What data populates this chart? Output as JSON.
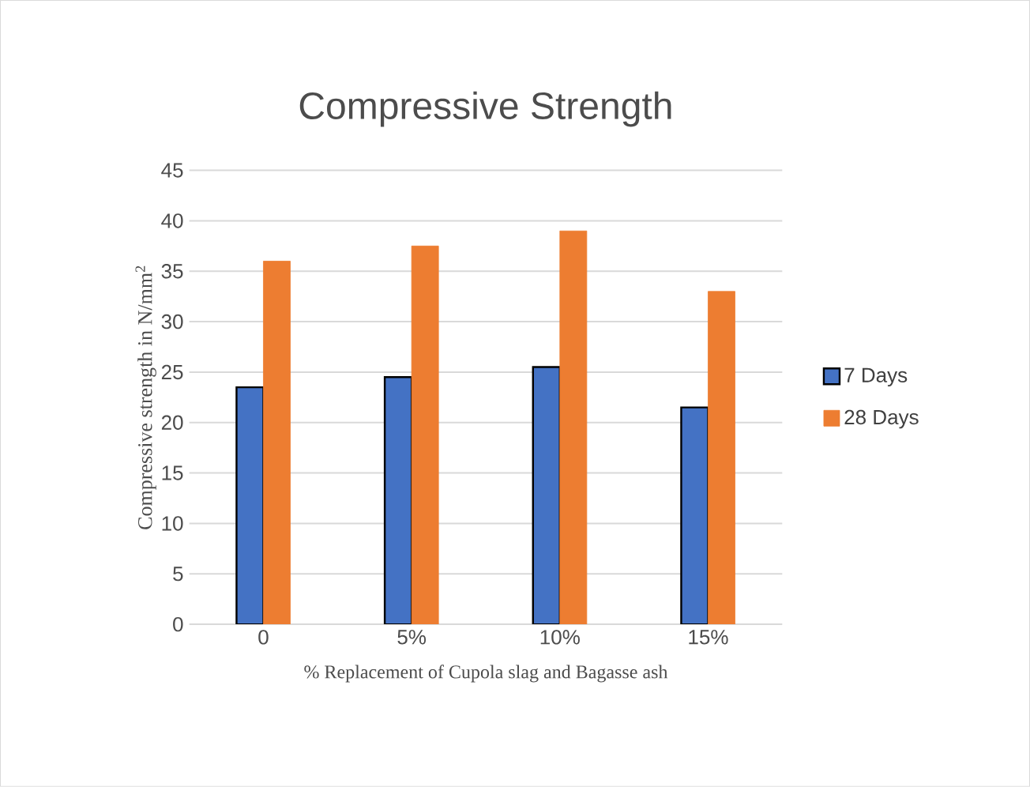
{
  "chart_data": {
    "type": "bar",
    "title": "Compressive Strength",
    "xlabel": "% Replacement of Cupola slag and Bagasse ash",
    "ylabel": "Compressive  strength in N/mm$^{2}$",
    "categories": [
      "0",
      "5%",
      "10%",
      "15%"
    ],
    "series": [
      {
        "name": "7 Days",
        "color": "#4472c4",
        "values": [
          23.5,
          24.5,
          25.5,
          21.5
        ]
      },
      {
        "name": "28 Days",
        "color": "#ed7d31",
        "values": [
          36,
          37.5,
          39,
          33
        ]
      }
    ],
    "ylim": [
      0,
      45
    ],
    "yticks": [
      0,
      5,
      10,
      15,
      20,
      25,
      30,
      35,
      40,
      45
    ],
    "grid": "y",
    "legend": "right"
  }
}
